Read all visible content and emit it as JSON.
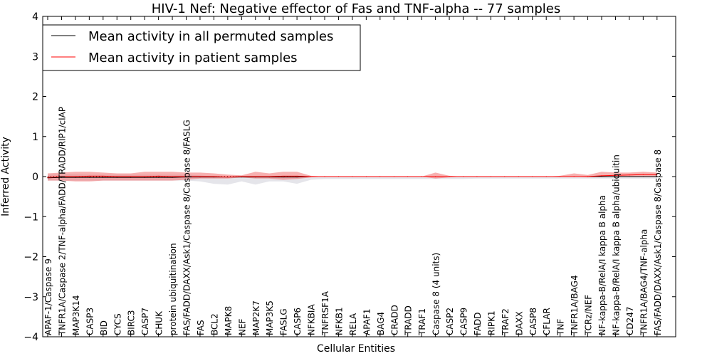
{
  "chart_data": {
    "type": "line",
    "title": "HIV-1 Nef: Negative effector of Fas and TNF-alpha -- 77 samples",
    "xlabel": "Cellular Entities",
    "ylabel": "Inferred Activity",
    "ylim": [
      -4,
      4
    ],
    "yticks": [
      "−4",
      "−3",
      "−2",
      "−1",
      "0",
      "1",
      "2",
      "3",
      "4"
    ],
    "legend": {
      "position": "top-left",
      "entries": [
        {
          "label": "Mean activity in all permuted samples",
          "color": "#000000"
        },
        {
          "label": "Mean activity in patient samples",
          "color": "#ff0000"
        }
      ]
    },
    "categories": [
      "APAF-1/Caspase 9",
      "TNFR1A/Caspase 2/TNF-alpha/FADD/TRADD/RIP1/cIAP",
      "MAP3K14",
      "CASP3",
      "BID",
      "CYCS",
      "BIRC3",
      "CASP7",
      "CHUK",
      "protein ubiquitination",
      "FAS/FADD/DAXX/Ask1/Caspase 8/Caspase 8/FASLG",
      "FAS",
      "BCL2",
      "MAPK8",
      "NEF",
      "MAP2K7",
      "MAP3K5",
      "FASLG",
      "CASP6",
      "NFKBIA",
      "TNFRSF1A",
      "NFKB1",
      "RELA",
      "APAF1",
      "BAG4",
      "CRADD",
      "TRADD",
      "TRAF1",
      "Caspase 8 (4 units)",
      "CASP2",
      "CASP9",
      "FADD",
      "RIPK1",
      "TRAF2",
      "DAXX",
      "CASP8",
      "CFLAR",
      "TNF",
      "TNFR1A/BAG4",
      "TCRz/NEF",
      "NF-kappa-B/RelA/I kappa B alpha",
      "NF-kappa-B/RelA/I kappa B alpha/ubiquitin",
      "CD247",
      "TNFR1A/BAG4/TNF-alpha",
      "FAS/FADD/DAXX/Ask1/Caspase 8/Caspase 8"
    ],
    "series": [
      {
        "name": "Mean activity in all permuted samples",
        "color": "#000000",
        "values": [
          -0.03,
          -0.02,
          -0.02,
          -0.02,
          -0.02,
          -0.02,
          -0.02,
          -0.02,
          -0.02,
          -0.02,
          -0.01,
          -0.01,
          -0.01,
          -0.01,
          -0.01,
          -0.01,
          -0.01,
          -0.01,
          -0.01,
          0,
          0,
          0,
          0,
          0,
          0,
          0,
          0,
          0,
          0,
          0,
          0,
          0,
          0,
          0,
          0,
          0,
          0,
          0,
          0,
          0,
          0,
          0,
          0,
          0,
          0
        ],
        "band_upper": [
          0.05,
          0.06,
          0.06,
          0.05,
          0.05,
          0.05,
          0.05,
          0.05,
          0.05,
          0.05,
          0.05,
          0.03,
          0.0,
          0.0,
          0.0,
          0.0,
          0.0,
          0.0,
          0.0,
          0.0,
          0.0,
          0.0,
          0.0,
          0.0,
          0.0,
          0.0,
          0.0,
          0.0,
          0.0,
          0.0,
          0.0,
          0.0,
          0.0,
          0.0,
          0.0,
          0.0,
          0.0,
          0.0,
          0.0,
          0.0,
          0.0,
          0.0,
          0.0,
          0.0,
          0.0
        ],
        "band_lower": [
          -0.1,
          -0.1,
          -0.1,
          -0.1,
          -0.1,
          -0.1,
          -0.1,
          -0.1,
          -0.1,
          -0.1,
          -0.1,
          -0.12,
          -0.18,
          -0.2,
          -0.12,
          -0.2,
          -0.12,
          -0.12,
          -0.18,
          -0.08,
          -0.06,
          -0.06,
          -0.06,
          -0.06,
          -0.06,
          -0.06,
          -0.06,
          -0.06,
          -0.06,
          -0.06,
          -0.06,
          -0.05,
          -0.05,
          -0.05,
          -0.05,
          -0.05,
          -0.05,
          -0.05,
          -0.05,
          -0.05,
          -0.05,
          -0.05,
          -0.05,
          -0.05,
          -0.05
        ]
      },
      {
        "name": "Mean activity in patient samples",
        "color": "#ff0000",
        "values": [
          -0.02,
          0.0,
          0.0,
          0.01,
          0.01,
          0.0,
          0.0,
          0.0,
          0.01,
          0.0,
          0.0,
          0.0,
          0.0,
          -0.01,
          0.0,
          0.0,
          0.0,
          0.01,
          0.01,
          0.0,
          0.0,
          0.0,
          0.0,
          0.0,
          0.0,
          0.0,
          0.0,
          0.0,
          0.0,
          0.0,
          0.0,
          0.0,
          0.0,
          0.0,
          0.0,
          0.0,
          0.0,
          0.0,
          0.0,
          0.0,
          0.02,
          0.03,
          0.04,
          0.05,
          0.05
        ],
        "band_upper": [
          0.08,
          0.1,
          0.12,
          0.12,
          0.1,
          0.08,
          0.08,
          0.12,
          0.12,
          0.12,
          0.1,
          0.1,
          0.08,
          0.05,
          0.03,
          0.12,
          0.08,
          0.12,
          0.12,
          0.02,
          0.0,
          0.0,
          0.0,
          0.0,
          0.0,
          0.0,
          0.0,
          0.0,
          0.1,
          0.02,
          0.0,
          0.0,
          0.0,
          0.0,
          0.0,
          0.0,
          0.0,
          0.02,
          0.08,
          0.04,
          0.12,
          0.1,
          0.1,
          0.12,
          0.1
        ],
        "band_lower": [
          -0.1,
          -0.1,
          -0.12,
          -0.12,
          -0.1,
          -0.1,
          -0.1,
          -0.1,
          -0.1,
          -0.1,
          -0.08,
          -0.05,
          -0.05,
          -0.05,
          -0.02,
          -0.05,
          -0.05,
          -0.08,
          -0.06,
          -0.02,
          0.0,
          0.0,
          0.0,
          0.0,
          0.0,
          0.0,
          0.0,
          0.0,
          -0.05,
          -0.02,
          0.0,
          0.0,
          0.0,
          0.0,
          0.0,
          0.0,
          0.0,
          -0.01,
          0.0,
          -0.02,
          0.0,
          0.0,
          0.0,
          0.0,
          0.0
        ]
      }
    ]
  }
}
